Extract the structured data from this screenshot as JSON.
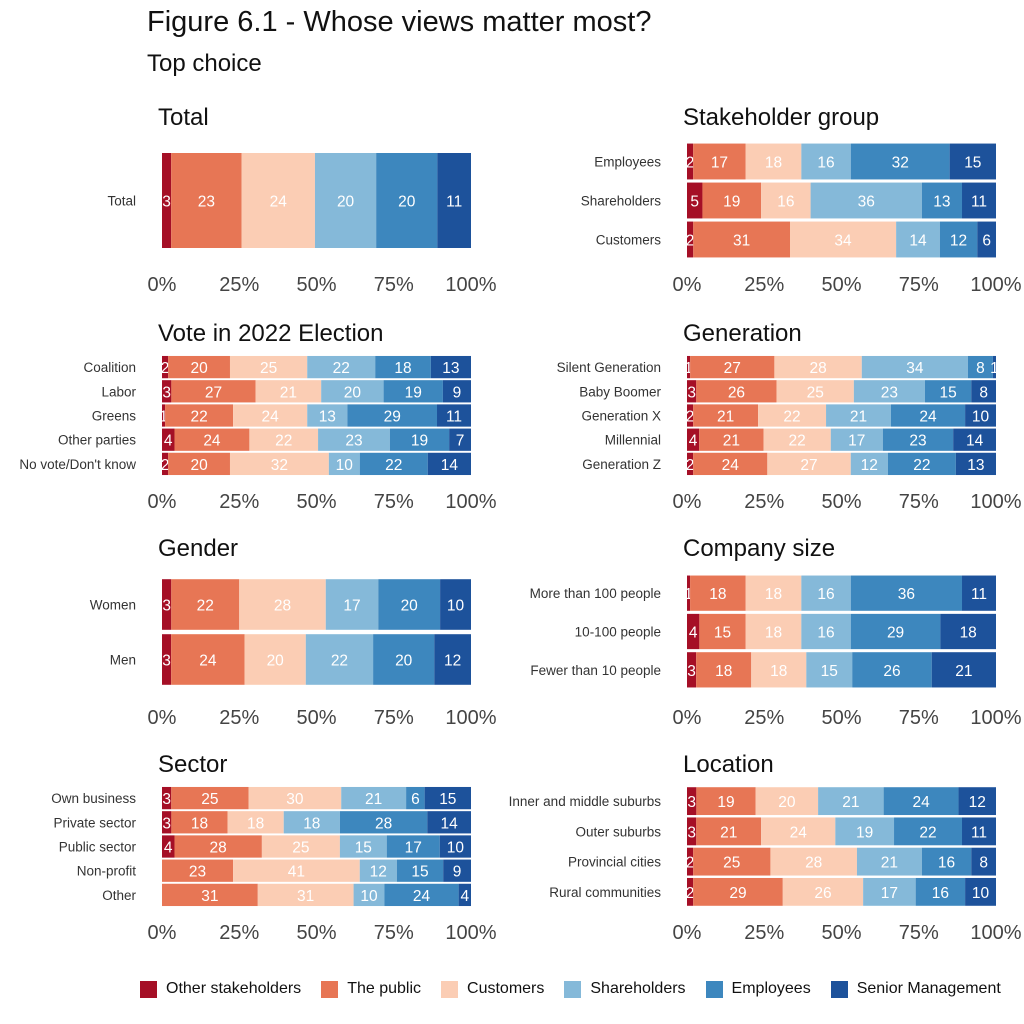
{
  "figure": {
    "title": "Figure 6.1 - Whose views matter most?",
    "subtitle": "Top choice"
  },
  "colors": {
    "Other stakeholders": "#a50f26",
    "The public": "#e77655",
    "Customers": "#fbcdb4",
    "Shareholders": "#85b9d9",
    "Employees": "#3d87be",
    "Senior Management": "#1d529b"
  },
  "legend": [
    "Other stakeholders",
    "The public",
    "Customers",
    "Shareholders",
    "Employees",
    "Senior Management"
  ],
  "chart_data": [
    {
      "type": "bar",
      "orientation": "horizontal",
      "stacked": true,
      "title": "Total",
      "categories": [
        "Total"
      ],
      "series": [
        {
          "name": "Other stakeholders",
          "values": [
            3
          ]
        },
        {
          "name": "The public",
          "values": [
            23
          ]
        },
        {
          "name": "Customers",
          "values": [
            24
          ]
        },
        {
          "name": "Shareholders",
          "values": [
            20
          ]
        },
        {
          "name": "Employees",
          "values": [
            20
          ]
        },
        {
          "name": "Senior Management",
          "values": [
            11
          ]
        }
      ],
      "xlim": [
        0,
        100
      ],
      "xticks": [
        "0%",
        "25%",
        "50%",
        "75%",
        "100%"
      ]
    },
    {
      "type": "bar",
      "orientation": "horizontal",
      "stacked": true,
      "title": "Stakeholder group",
      "categories": [
        "Employees",
        "Shareholders",
        "Customers"
      ],
      "series": [
        {
          "name": "Other stakeholders",
          "values": [
            2,
            5,
            2
          ]
        },
        {
          "name": "The public",
          "values": [
            17,
            19,
            31
          ]
        },
        {
          "name": "Customers",
          "values": [
            18,
            16,
            34
          ]
        },
        {
          "name": "Shareholders",
          "values": [
            16,
            36,
            14
          ]
        },
        {
          "name": "Employees",
          "values": [
            32,
            13,
            12
          ]
        },
        {
          "name": "Senior Management",
          "values": [
            15,
            11,
            6
          ]
        }
      ],
      "xlim": [
        0,
        100
      ],
      "xticks": [
        "0%",
        "25%",
        "50%",
        "75%",
        "100%"
      ]
    },
    {
      "type": "bar",
      "orientation": "horizontal",
      "stacked": true,
      "title": "Vote in 2022 Election",
      "categories": [
        "Coalition",
        "Labor",
        "Greens",
        "Other parties",
        "No vote/Don't know"
      ],
      "series": [
        {
          "name": "Other stakeholders",
          "values": [
            2,
            3,
            1,
            4,
            2
          ]
        },
        {
          "name": "The public",
          "values": [
            20,
            27,
            22,
            24,
            20
          ]
        },
        {
          "name": "Customers",
          "values": [
            25,
            21,
            24,
            22,
            32
          ]
        },
        {
          "name": "Shareholders",
          "values": [
            22,
            20,
            13,
            23,
            10
          ]
        },
        {
          "name": "Employees",
          "values": [
            18,
            19,
            29,
            19,
            22
          ]
        },
        {
          "name": "Senior Management",
          "values": [
            13,
            9,
            11,
            7,
            14
          ]
        }
      ],
      "xlim": [
        0,
        100
      ],
      "xticks": [
        "0%",
        "25%",
        "50%",
        "75%",
        "100%"
      ]
    },
    {
      "type": "bar",
      "orientation": "horizontal",
      "stacked": true,
      "title": "Generation",
      "categories": [
        "Silent Generation",
        "Baby Boomer",
        "Generation X",
        "Millennial",
        "Generation Z"
      ],
      "series": [
        {
          "name": "Other stakeholders",
          "values": [
            1,
            3,
            2,
            4,
            2
          ]
        },
        {
          "name": "The public",
          "values": [
            27,
            26,
            21,
            21,
            24
          ]
        },
        {
          "name": "Customers",
          "values": [
            28,
            25,
            22,
            22,
            27
          ]
        },
        {
          "name": "Shareholders",
          "values": [
            34,
            23,
            21,
            17,
            12
          ]
        },
        {
          "name": "Employees",
          "values": [
            8,
            15,
            24,
            23,
            22
          ]
        },
        {
          "name": "Senior Management",
          "values": [
            1,
            8,
            10,
            14,
            13
          ]
        }
      ],
      "xlim": [
        0,
        100
      ],
      "xticks": [
        "0%",
        "25%",
        "50%",
        "75%",
        "100%"
      ]
    },
    {
      "type": "bar",
      "orientation": "horizontal",
      "stacked": true,
      "title": "Gender",
      "categories": [
        "Women",
        "Men"
      ],
      "series": [
        {
          "name": "Other stakeholders",
          "values": [
            3,
            3
          ]
        },
        {
          "name": "The public",
          "values": [
            22,
            24
          ]
        },
        {
          "name": "Customers",
          "values": [
            28,
            20
          ]
        },
        {
          "name": "Shareholders",
          "values": [
            17,
            22
          ]
        },
        {
          "name": "Employees",
          "values": [
            20,
            20
          ]
        },
        {
          "name": "Senior Management",
          "values": [
            10,
            12
          ]
        }
      ],
      "xlim": [
        0,
        100
      ],
      "xticks": [
        "0%",
        "25%",
        "50%",
        "75%",
        "100%"
      ]
    },
    {
      "type": "bar",
      "orientation": "horizontal",
      "stacked": true,
      "title": "Company size",
      "categories": [
        "More than 100 people",
        "10-100 people",
        "Fewer than 10 people"
      ],
      "series": [
        {
          "name": "Other stakeholders",
          "values": [
            1,
            4,
            3
          ]
        },
        {
          "name": "The public",
          "values": [
            18,
            15,
            18
          ]
        },
        {
          "name": "Customers",
          "values": [
            18,
            18,
            18
          ]
        },
        {
          "name": "Shareholders",
          "values": [
            16,
            16,
            15
          ]
        },
        {
          "name": "Employees",
          "values": [
            36,
            29,
            26
          ]
        },
        {
          "name": "Senior Management",
          "values": [
            11,
            18,
            21
          ]
        }
      ],
      "xlim": [
        0,
        100
      ],
      "xticks": [
        "0%",
        "25%",
        "50%",
        "75%",
        "100%"
      ]
    },
    {
      "type": "bar",
      "orientation": "horizontal",
      "stacked": true,
      "title": "Sector",
      "categories": [
        "Own business",
        "Private sector",
        "Public sector",
        "Non-profit",
        "Other"
      ],
      "series": [
        {
          "name": "Other stakeholders",
          "values": [
            3,
            3,
            4,
            0,
            0
          ]
        },
        {
          "name": "The public",
          "values": [
            25,
            18,
            28,
            23,
            31
          ]
        },
        {
          "name": "Customers",
          "values": [
            30,
            18,
            25,
            41,
            31
          ]
        },
        {
          "name": "Shareholders",
          "values": [
            21,
            18,
            15,
            12,
            10
          ]
        },
        {
          "name": "Employees",
          "values": [
            6,
            28,
            17,
            15,
            24
          ]
        },
        {
          "name": "Senior Management",
          "values": [
            15,
            14,
            10,
            9,
            4
          ]
        }
      ],
      "xlim": [
        0,
        100
      ],
      "xticks": [
        "0%",
        "25%",
        "50%",
        "75%",
        "100%"
      ]
    },
    {
      "type": "bar",
      "orientation": "horizontal",
      "stacked": true,
      "title": "Location",
      "categories": [
        "Inner and middle suburbs",
        "Outer suburbs",
        "Provincial cities",
        "Rural communities"
      ],
      "series": [
        {
          "name": "Other stakeholders",
          "values": [
            3,
            3,
            2,
            2
          ]
        },
        {
          "name": "The public",
          "values": [
            19,
            21,
            25,
            29
          ]
        },
        {
          "name": "Customers",
          "values": [
            20,
            24,
            28,
            26
          ]
        },
        {
          "name": "Shareholders",
          "values": [
            21,
            19,
            21,
            17
          ]
        },
        {
          "name": "Employees",
          "values": [
            24,
            22,
            16,
            16
          ]
        },
        {
          "name": "Senior Management",
          "values": [
            12,
            11,
            8,
            10
          ]
        }
      ],
      "xlim": [
        0,
        100
      ],
      "xticks": [
        "0%",
        "25%",
        "50%",
        "75%",
        "100%"
      ]
    }
  ]
}
